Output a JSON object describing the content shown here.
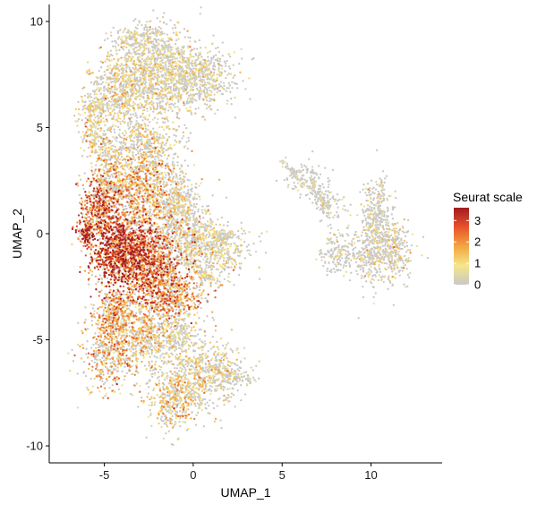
{
  "chart_data": {
    "type": "scatter",
    "title": "",
    "xlabel": "UMAP_1",
    "ylabel": "UMAP_2",
    "xlim": [
      -8.1,
      14.0
    ],
    "ylim": [
      -10.8,
      10.8
    ],
    "x_ticks": [
      -5,
      0,
      5,
      10
    ],
    "y_ticks": [
      -10,
      -5,
      0,
      5,
      10
    ],
    "grid": false,
    "color_scale": {
      "title": "Seurat scale",
      "min": 0,
      "max": 3.6,
      "ticks": [
        0,
        1,
        2,
        3
      ],
      "colors": [
        "#c8c8c8",
        "#f5e68a",
        "#f2a640",
        "#e8522a",
        "#a31b1f"
      ]
    },
    "legend_position": "right",
    "clusters": [
      {
        "cx": -3.8,
        "cy": 6.9,
        "sx": 0.9,
        "sy": 1.0,
        "n": 700,
        "v": 0.8,
        "p": 0.45
      },
      {
        "cx": -1.5,
        "cy": 7.6,
        "sx": 1.0,
        "sy": 1.0,
        "n": 800,
        "v": 0.7,
        "p": 0.45
      },
      {
        "cx": 0.4,
        "cy": 7.3,
        "sx": 1.0,
        "sy": 0.7,
        "n": 500,
        "v": 0.6,
        "p": 0.4
      },
      {
        "cx": -2.9,
        "cy": 9.1,
        "sx": 0.8,
        "sy": 0.4,
        "n": 250,
        "v": 0.5,
        "p": 0.4
      },
      {
        "cx": -5.6,
        "cy": 5.3,
        "sx": 0.4,
        "sy": 0.9,
        "n": 250,
        "v": 0.9,
        "p": 0.55
      },
      {
        "cx": -4.6,
        "cy": 3.6,
        "sx": 0.5,
        "sy": 0.7,
        "n": 250,
        "v": 0.9,
        "p": 0.5
      },
      {
        "cx": -2.5,
        "cy": 4.1,
        "sx": 0.9,
        "sy": 0.7,
        "n": 400,
        "v": 0.9,
        "p": 0.5
      },
      {
        "cx": -5.2,
        "cy": 1.4,
        "sx": 0.6,
        "sy": 0.7,
        "n": 450,
        "v": 1.9,
        "p": 0.7
      },
      {
        "cx": -3.0,
        "cy": 2.0,
        "sx": 0.9,
        "sy": 0.9,
        "n": 700,
        "v": 1.4,
        "p": 0.6
      },
      {
        "cx": -0.9,
        "cy": 1.4,
        "sx": 0.6,
        "sy": 0.8,
        "n": 450,
        "v": 0.7,
        "p": 0.4
      },
      {
        "cx": -6.0,
        "cy": -0.1,
        "sx": 0.25,
        "sy": 0.35,
        "n": 120,
        "v": 2.3,
        "p": 0.85
      },
      {
        "cx": -4.2,
        "cy": -0.8,
        "sx": 0.8,
        "sy": 0.9,
        "n": 1100,
        "v": 2.3,
        "p": 0.8
      },
      {
        "cx": -2.3,
        "cy": -1.3,
        "sx": 0.9,
        "sy": 1.0,
        "n": 1000,
        "v": 1.9,
        "p": 0.7
      },
      {
        "cx": 0.2,
        "cy": -0.4,
        "sx": 0.8,
        "sy": 0.7,
        "n": 500,
        "v": 0.8,
        "p": 0.4
      },
      {
        "cx": 1.6,
        "cy": -0.9,
        "sx": 0.8,
        "sy": 0.6,
        "n": 250,
        "v": 0.7,
        "p": 0.35
      },
      {
        "cx": -1.1,
        "cy": -3.0,
        "sx": 0.9,
        "sy": 0.6,
        "n": 500,
        "v": 1.6,
        "p": 0.6
      },
      {
        "cx": -4.3,
        "cy": -3.7,
        "sx": 0.6,
        "sy": 0.5,
        "n": 350,
        "v": 1.5,
        "p": 0.6
      },
      {
        "cx": -4.6,
        "cy": -5.5,
        "sx": 0.8,
        "sy": 0.9,
        "n": 550,
        "v": 1.3,
        "p": 0.6
      },
      {
        "cx": -2.6,
        "cy": -4.9,
        "sx": 0.7,
        "sy": 0.7,
        "n": 350,
        "v": 1.1,
        "p": 0.55
      },
      {
        "cx": -1.0,
        "cy": -4.6,
        "sx": 0.5,
        "sy": 0.5,
        "n": 200,
        "v": 0.7,
        "p": 0.4
      },
      {
        "cx": 0.0,
        "cy": -6.6,
        "sx": 1.0,
        "sy": 1.0,
        "n": 600,
        "v": 0.8,
        "p": 0.5
      },
      {
        "cx": -1.2,
        "cy": -8.0,
        "sx": 0.7,
        "sy": 0.7,
        "n": 300,
        "v": 1.1,
        "p": 0.6
      },
      {
        "cx": 1.6,
        "cy": -6.5,
        "sx": 0.7,
        "sy": 0.6,
        "n": 200,
        "v": 0.5,
        "p": 0.35
      },
      {
        "cx": 6.2,
        "cy": 2.7,
        "sx": 0.6,
        "sy": 0.4,
        "n": 80,
        "v": 0.3,
        "p": 0.2
      },
      {
        "cx": 7.5,
        "cy": 1.6,
        "sx": 0.5,
        "sy": 0.5,
        "n": 90,
        "v": 0.3,
        "p": 0.2
      },
      {
        "cx": 8.1,
        "cy": -1.0,
        "sx": 0.5,
        "sy": 0.5,
        "n": 120,
        "v": 0.4,
        "p": 0.25
      },
      {
        "cx": 10.2,
        "cy": -0.9,
        "sx": 0.9,
        "sy": 0.8,
        "n": 450,
        "v": 0.5,
        "p": 0.3
      },
      {
        "cx": 10.3,
        "cy": 0.9,
        "sx": 0.4,
        "sy": 0.9,
        "n": 250,
        "v": 0.4,
        "p": 0.25
      },
      {
        "cx": 11.4,
        "cy": -0.6,
        "sx": 0.4,
        "sy": 0.7,
        "n": 150,
        "v": 0.8,
        "p": 0.4
      }
    ],
    "segments": [
      {
        "x1": -5.9,
        "y1": 5.8,
        "x2": -4.3,
        "y2": 6.4,
        "n": 50,
        "v": 0.6
      },
      {
        "x1": -5.4,
        "y1": 2.6,
        "x2": -4.2,
        "y2": 2.1,
        "n": 60,
        "v": 0.9
      },
      {
        "x1": 5.0,
        "y1": 3.4,
        "x2": 7.6,
        "y2": 1.2,
        "n": 90,
        "v": 0.2
      },
      {
        "x1": 6.6,
        "y1": 3.2,
        "x2": 7.6,
        "y2": 0.6,
        "n": 50,
        "v": 0.2
      },
      {
        "x1": 1.0,
        "y1": -0.2,
        "x2": 2.3,
        "y2": -0.1,
        "n": 60,
        "v": 0.6
      },
      {
        "x1": -0.5,
        "y1": -1.4,
        "x2": 1.6,
        "y2": -2.4,
        "n": 80,
        "v": 0.9
      },
      {
        "x1": 1.5,
        "y1": -6.6,
        "x2": 3.5,
        "y2": -6.9,
        "n": 60,
        "v": 0.4
      },
      {
        "x1": 10.6,
        "y1": 2.5,
        "x2": 10.3,
        "y2": 0.5,
        "n": 40,
        "v": 0.4
      }
    ]
  }
}
